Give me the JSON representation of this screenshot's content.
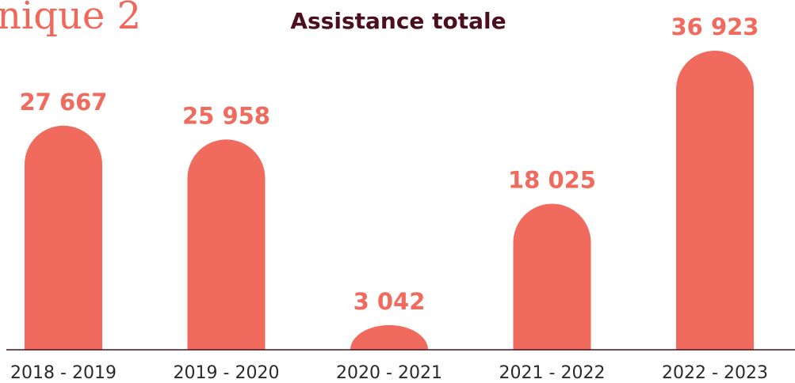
{
  "heading_fragment": "nique 2",
  "chart_data": {
    "type": "bar",
    "title": "Assistance totale",
    "categories": [
      "2018 - 2019",
      "2019 - 2020",
      "2020 - 2021",
      "2021 - 2022",
      "2022 - 2023"
    ],
    "values": [
      27667,
      25958,
      3042,
      18025,
      36923
    ],
    "value_labels": [
      "27 667",
      "25 958",
      "3 042",
      "18 025",
      "36 923"
    ],
    "xlabel": "",
    "ylabel": "",
    "ylim": [
      0,
      36923
    ],
    "grid": false,
    "legend": "none",
    "bar_color": "#f06a5e",
    "title_color": "#4b0f1e"
  }
}
